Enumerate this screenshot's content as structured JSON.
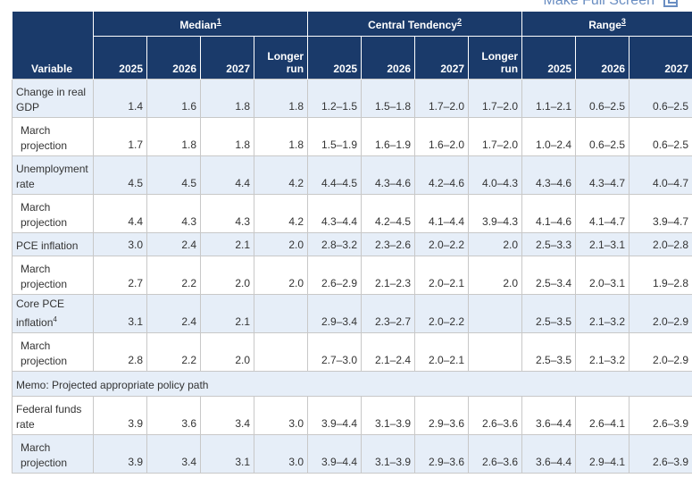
{
  "top_link": {
    "label": "Make Full Screen",
    "icon": "fullscreen-icon"
  },
  "colors": {
    "header_bg": "#1a3a6a",
    "row_shade": "#e6eef8",
    "link": "#6a8ec2"
  },
  "groups": {
    "median": {
      "label": "Median",
      "note": "1"
    },
    "central_tendency": {
      "label": "Central Tendency",
      "note": "2"
    },
    "range": {
      "label": "Range",
      "note": "3"
    }
  },
  "columns": {
    "variable": "Variable",
    "y2025": "2025",
    "y2026": "2026",
    "y2027": "2027",
    "longer_run": "Longer run"
  },
  "rows": [
    {
      "label": "Change in real GDP",
      "median": [
        "1.4",
        "1.6",
        "1.8",
        "1.8"
      ],
      "central": [
        "1.2–1.5",
        "1.5–1.8",
        "1.7–2.0",
        "1.7–2.0"
      ],
      "range": [
        "1.1–2.1",
        "0.6–2.5",
        "0.6–2.5"
      ]
    },
    {
      "label": "March projection",
      "median": [
        "1.7",
        "1.8",
        "1.8",
        "1.8"
      ],
      "central": [
        "1.5–1.9",
        "1.6–1.9",
        "1.6–2.0",
        "1.7–2.0"
      ],
      "range": [
        "1.0–2.4",
        "0.6–2.5",
        "0.6–2.5"
      ]
    },
    {
      "label": "Unemployment rate",
      "median": [
        "4.5",
        "4.5",
        "4.4",
        "4.2"
      ],
      "central": [
        "4.4–4.5",
        "4.3–4.6",
        "4.2–4.6",
        "4.0–4.3"
      ],
      "range": [
        "4.3–4.6",
        "4.3–4.7",
        "4.0–4.7"
      ]
    },
    {
      "label": "March projection",
      "median": [
        "4.4",
        "4.3",
        "4.3",
        "4.2"
      ],
      "central": [
        "4.3–4.4",
        "4.2–4.5",
        "4.1–4.4",
        "3.9–4.3"
      ],
      "range": [
        "4.1–4.6",
        "4.1–4.7",
        "3.9–4.7"
      ]
    },
    {
      "label": "PCE inflation",
      "median": [
        "3.0",
        "2.4",
        "2.1",
        "2.0"
      ],
      "central": [
        "2.8–3.2",
        "2.3–2.6",
        "2.0–2.2",
        "2.0"
      ],
      "range": [
        "2.5–3.3",
        "2.1–3.1",
        "2.0–2.8"
      ]
    },
    {
      "label": "March projection",
      "median": [
        "2.7",
        "2.2",
        "2.0",
        "2.0"
      ],
      "central": [
        "2.6–2.9",
        "2.1–2.3",
        "2.0–2.1",
        "2.0"
      ],
      "range": [
        "2.5–3.4",
        "2.0–3.1",
        "1.9–2.8"
      ]
    },
    {
      "label": "Core PCE inflation",
      "note": "4",
      "median": [
        "3.1",
        "2.4",
        "2.1",
        ""
      ],
      "central": [
        "2.9–3.4",
        "2.3–2.7",
        "2.0–2.2",
        ""
      ],
      "range": [
        "2.5–3.5",
        "2.1–3.2",
        "2.0–2.9"
      ]
    },
    {
      "label": "March projection",
      "median": [
        "2.8",
        "2.2",
        "2.0",
        ""
      ],
      "central": [
        "2.7–3.0",
        "2.1–2.4",
        "2.0–2.1",
        ""
      ],
      "range": [
        "2.5–3.5",
        "2.1–3.2",
        "2.0–2.9"
      ]
    },
    {
      "label": "Federal funds rate",
      "median": [
        "3.9",
        "3.6",
        "3.4",
        "3.0"
      ],
      "central": [
        "3.9–4.4",
        "3.1–3.9",
        "2.9–3.6",
        "2.6–3.6"
      ],
      "range": [
        "3.6–4.4",
        "2.6–4.1",
        "2.6–3.9"
      ]
    },
    {
      "label": "March projection",
      "median": [
        "3.9",
        "3.4",
        "3.1",
        "3.0"
      ],
      "central": [
        "3.9–4.4",
        "3.1–3.9",
        "2.9–3.6",
        "2.6–3.6"
      ],
      "range": [
        "3.6–4.4",
        "2.9–4.1",
        "2.6–3.9"
      ]
    }
  ],
  "memo": "Memo: Projected appropriate policy path"
}
